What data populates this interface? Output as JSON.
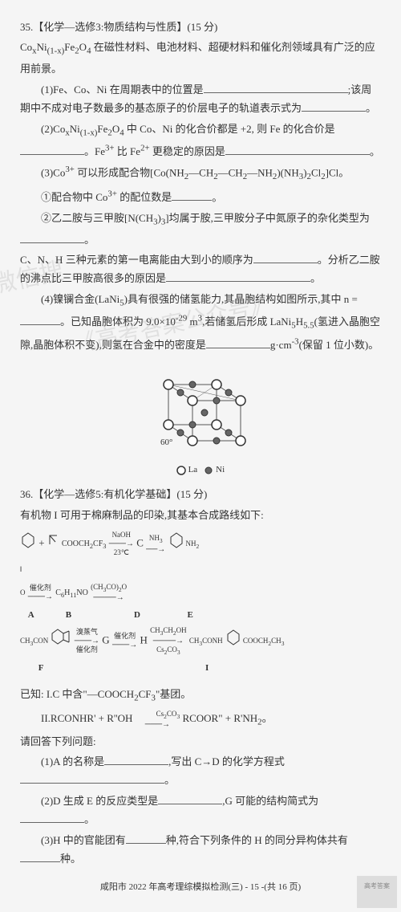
{
  "q35": {
    "title": "35.【化学—选修3:物质结构与性质】(15 分)",
    "intro": "Co<sub>x</sub>Ni<sub>(1-x)</sub>Fe<sub>2</sub>O<sub>4</sub> 在磁性材料、电池材料、超硬材料和催化剂领域具有广泛的应用前景。",
    "p1": "(1)Fe、Co、Ni 在周期表中的位置是",
    "p1b": ";该周期中不成对电子数最多的基态原子的价层电子的轨道表示式为",
    "p2a": "(2)Co<sub>x</sub>Ni<sub>(1-x)</sub>Fe<sub>2</sub>O<sub>4</sub> 中 Co、Ni 的化合价都是 +2, 则 Fe 的化合价是",
    "p2b": "。Fe<sup>3+</sup> 比 Fe<sup>2+</sup> 更稳定的原因是",
    "p3": "(3)Co<sup>3+</sup> 可以形成配合物[Co(NH<sub>2</sub>—CH<sub>2</sub>—CH<sub>2</sub>—NH<sub>2</sub>)(NH<sub>3</sub>)<sub>2</sub>Cl<sub>2</sub>]Cl。",
    "p3_1": "①配合物中 Co<sup>3+</sup> 的配位数是",
    "p3_2a": "②乙二胺与三甲胺[N(CH<sub>3</sub>)<sub>3</sub>]均属于胺,三甲胺分子中氮原子的杂化类型为",
    "p3_2b": "C、N、H 三种元素的第一电离能由大到小的顺序为",
    "p3_2c": "。分析乙二胺的沸点比三甲胺高很多的原因是",
    "p4a": "(4)镍镧合金(LaNi<sub>5</sub>)具有很强的储氢能力,其晶胞结构如图所示,其中 n =",
    "p4b": "。已知晶胞体积为 9.0×10<sup>-29</sup> m<sup>3</sup>,若储氢后形成 LaNi<sub>5</sub>H<sub>5.5</sub>(氢进入晶胞空隙,晶胞体积不变),则氢在合金中的密度是",
    "p4c": "g·cm<sup>-3</sup>(保留 1 位小数)。",
    "diagram": {
      "angle_label": "60°",
      "legend_la": "La",
      "legend_ni": "Ni"
    }
  },
  "q36": {
    "title": "36.【化学—选修5:有机化学基础】(15 分)",
    "intro": "有机物 I 可用于棉麻制品的印染,其基本合成路线如下:",
    "flow": {
      "A": "A",
      "B_pre": "+",
      "B_struct": "COOCH<sub>2</sub>CF<sub>3</sub>",
      "B": "B",
      "cond1_top": "NaOH",
      "cond1_bot": "23℃",
      "C": "C",
      "cond2_top": "NH<sub>3</sub>",
      "D": "D",
      "cond3": "催化剂",
      "E_struct": "C<sub>6</sub>H<sub>11</sub>NO",
      "E_cond": "(CH<sub>3</sub>CO)<sub>2</sub>O",
      "E": "E",
      "F_struct": "NH.C<sub>3</sub>CON",
      "F": "F",
      "cond4_top": "溴蒸气",
      "cond4_bot": "催化剂",
      "G": "G",
      "cond5": "催化剂",
      "H": "H",
      "cond6_top": "CH<sub>3</sub>CH<sub>2</sub>OH",
      "cond6_bot": "Cs<sub>2</sub>CO<sub>3</sub>",
      "I_struct": "CH<sub>3</sub>CONH",
      "I_struct2": "COOCH<sub>2</sub>CH<sub>3</sub>",
      "I": "I"
    },
    "known1": "已知: I.C 中含\"—COOCH<sub>2</sub>CF<sub>3</sub>\"基团。",
    "known2": "II.RCONHR' + R''OH",
    "known2_cond": "Cs<sub>2</sub>CO<sub>3</sub>",
    "known2_r": "RCOOR\" + R'NH<sub>2</sub>。",
    "prompt": "请回答下列问题:",
    "q1a": "(1)A 的名称是",
    "q1b": ",写出 C→D 的化学方程式",
    "q2a": "(2)D 生成 E 的反应类型是",
    "q2b": ",G 可能的结构简式为",
    "q3a": "(3)H 中的官能团有",
    "q3b": "种,符合下列条件的 H 的同分异构体共有",
    "q3c": "种。"
  },
  "footer": "咸阳市 2022 年高考理综模拟检测(三) - 15 -(共 16 页)",
  "corner": "高考答案"
}
